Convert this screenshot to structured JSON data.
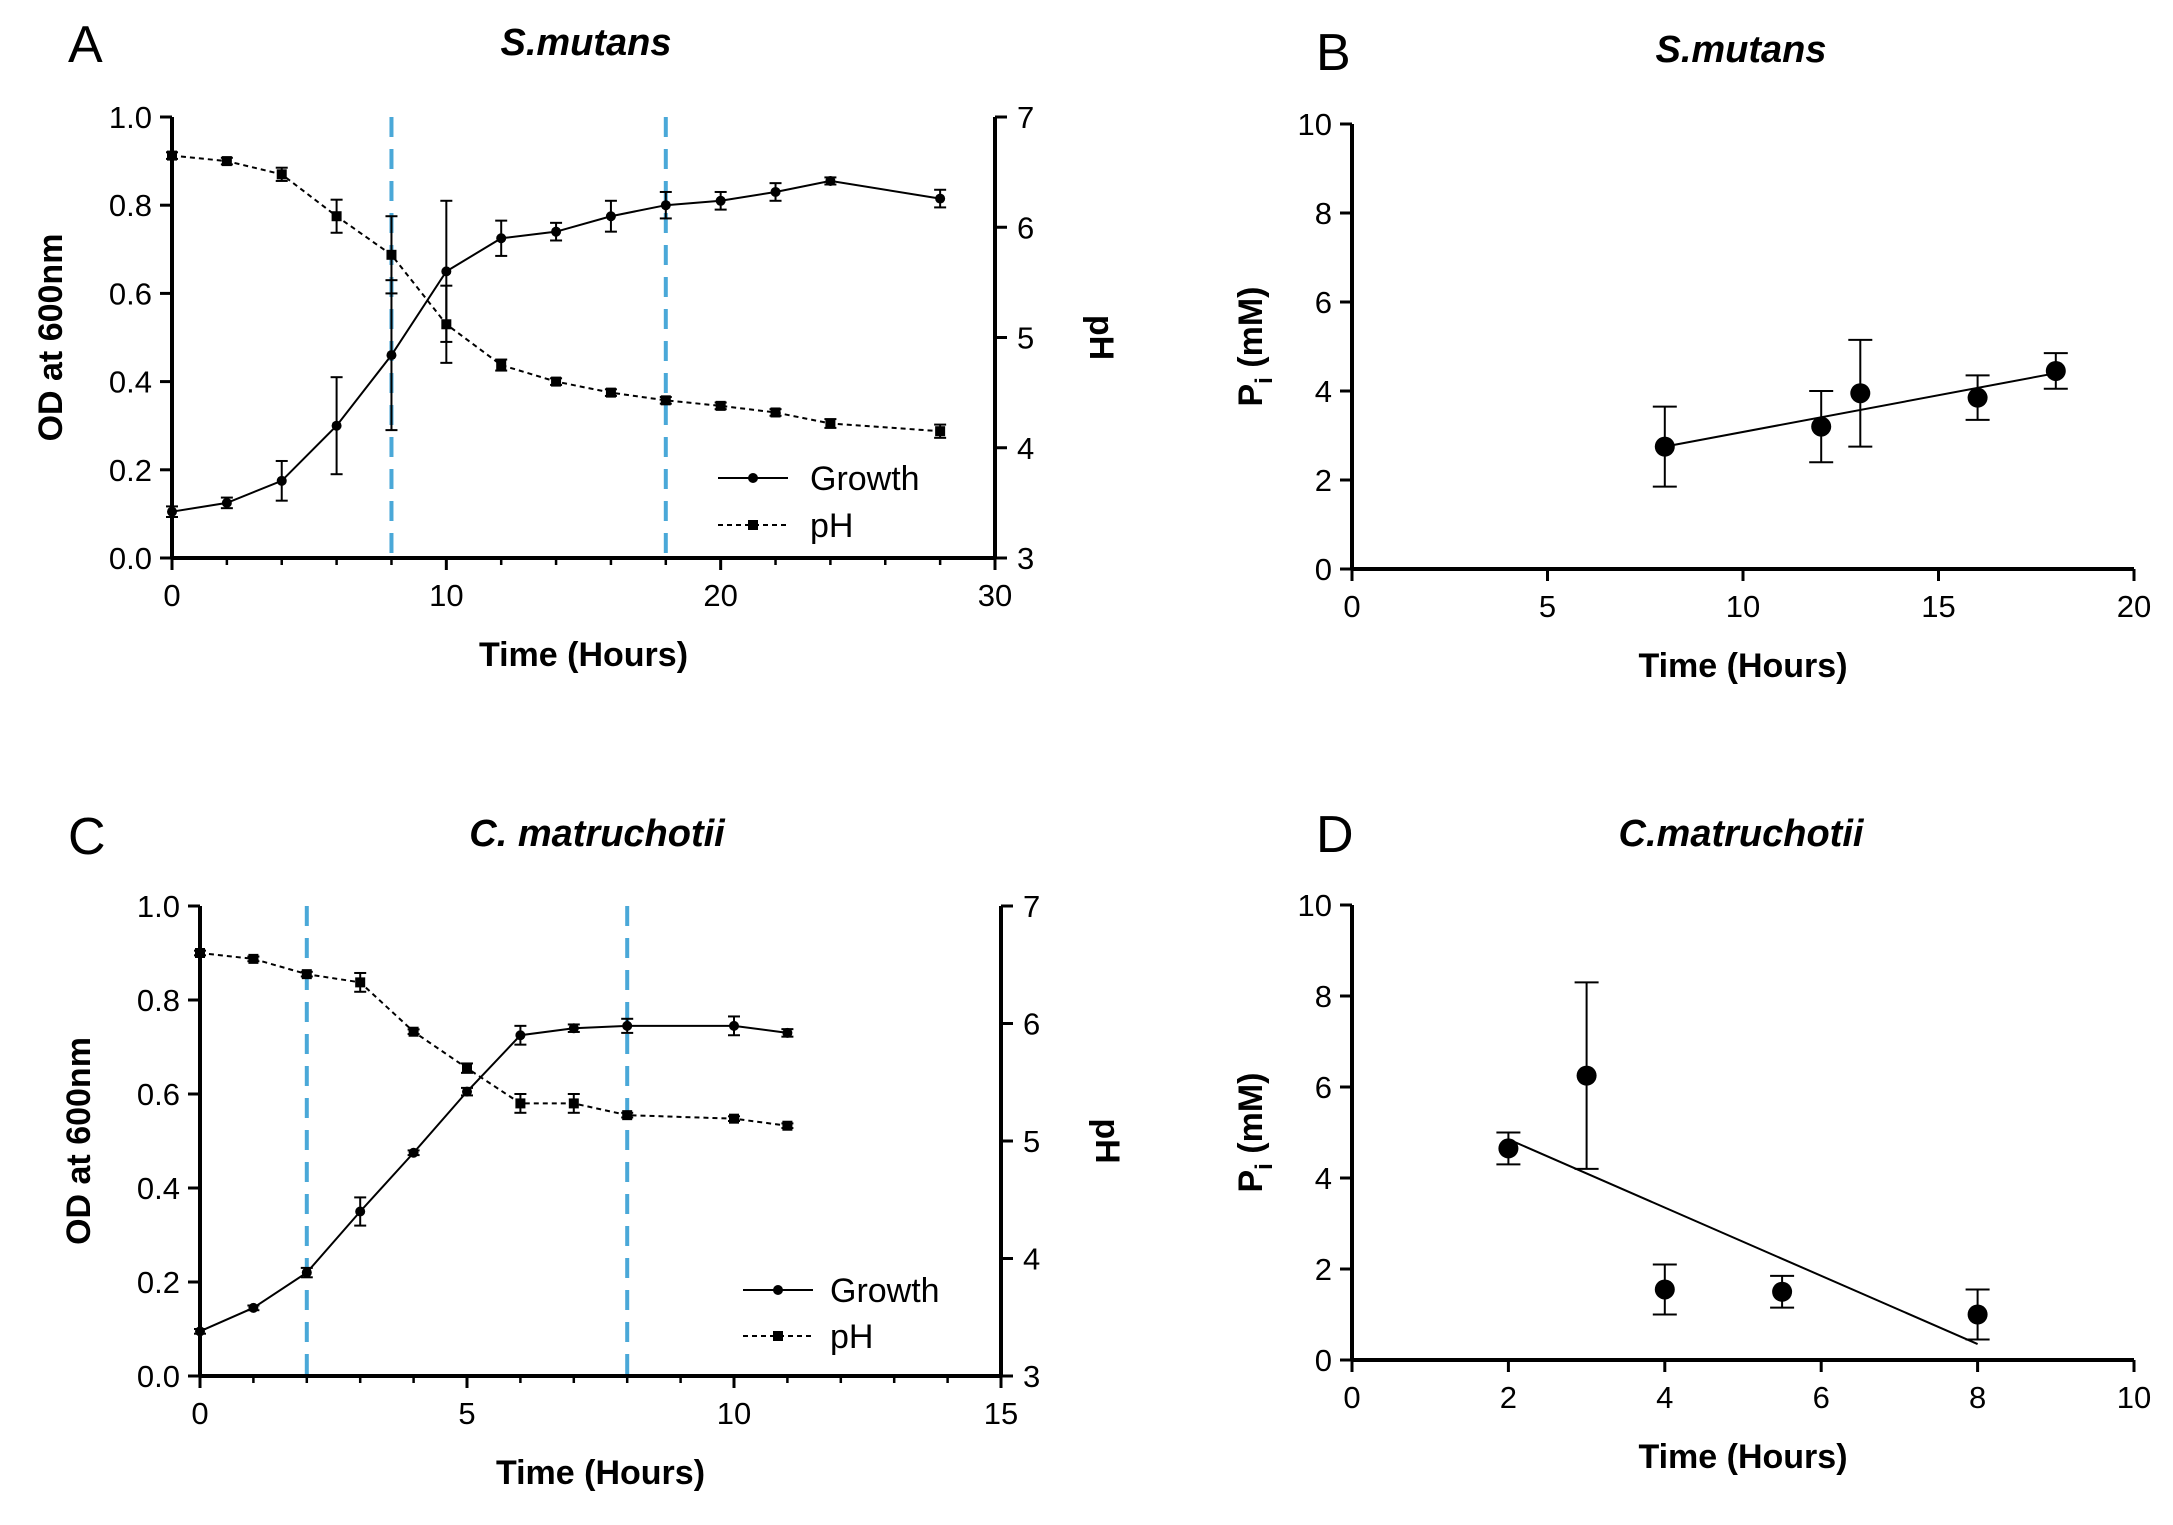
{
  "figure": {
    "panels": [
      {
        "letter": "A",
        "title": "S.mutans"
      },
      {
        "letter": "B",
        "title": "S.mutans"
      },
      {
        "letter": "C",
        "title": "C. matruchotii"
      },
      {
        "letter": "D",
        "title": "C.matruchotii"
      }
    ]
  },
  "colors": {
    "axis": "#000000",
    "marker_vline": "#4aa8d8",
    "line": "#000000"
  },
  "chart_data": [
    {
      "id": "A",
      "type": "line",
      "title": "S.mutans",
      "xlabel": "Time (Hours)",
      "ylabel": "OD at 600nm",
      "y2label": "pH",
      "xlim": [
        0,
        30
      ],
      "xticks": [
        0,
        10,
        20,
        30
      ],
      "ylim": [
        0,
        1.0
      ],
      "yticks": [
        0.0,
        0.2,
        0.4,
        0.6,
        0.8,
        1.0
      ],
      "y2lim": [
        3,
        7
      ],
      "y2ticks": [
        3,
        4,
        5,
        6,
        7
      ],
      "vlines": [
        8,
        18
      ],
      "legend_position": "bottom-right",
      "series": [
        {
          "name": "Growth",
          "axis": "left",
          "style": "solid",
          "marker": "circle",
          "x": [
            0,
            2,
            4,
            6,
            8,
            10,
            12,
            14,
            16,
            18,
            20,
            22,
            24,
            28
          ],
          "y": [
            0.105,
            0.125,
            0.175,
            0.3,
            0.46,
            0.65,
            0.725,
            0.74,
            0.775,
            0.8,
            0.81,
            0.83,
            0.855,
            0.815
          ],
          "err": [
            0.012,
            0.012,
            0.045,
            0.11,
            0.17,
            0.16,
            0.04,
            0.02,
            0.035,
            0.03,
            0.02,
            0.02,
            0.008,
            0.02
          ]
        },
        {
          "name": "pH",
          "axis": "right",
          "style": "dashed",
          "marker": "square",
          "x": [
            0,
            2,
            4,
            6,
            8,
            10,
            12,
            14,
            16,
            18,
            20,
            22,
            24,
            28
          ],
          "y": [
            6.65,
            6.6,
            6.48,
            6.1,
            5.75,
            5.12,
            4.75,
            4.6,
            4.5,
            4.43,
            4.38,
            4.32,
            4.22,
            4.15
          ],
          "err": [
            0.03,
            0.03,
            0.06,
            0.15,
            0.35,
            0.35,
            0.05,
            0.03,
            0.03,
            0.03,
            0.03,
            0.03,
            0.04,
            0.06
          ]
        }
      ]
    },
    {
      "id": "B",
      "type": "scatter",
      "title": "S.mutans",
      "xlabel": "Time (Hours)",
      "ylabel_main": "P",
      "ylabel_sub": "i",
      "ylabel_unit": " (mM)",
      "xlim": [
        0,
        20
      ],
      "xticks": [
        0,
        5,
        10,
        15,
        20
      ],
      "ylim": [
        0,
        10
      ],
      "yticks": [
        0,
        2,
        4,
        6,
        8,
        10
      ],
      "points": {
        "x": [
          8,
          12,
          13,
          16,
          18
        ],
        "y": [
          2.75,
          3.2,
          3.95,
          3.85,
          4.45
        ],
        "err": [
          0.9,
          0.8,
          1.2,
          0.5,
          0.4
        ]
      },
      "fit": {
        "x": [
          8,
          18
        ],
        "y": [
          2.75,
          4.4
        ]
      }
    },
    {
      "id": "C",
      "type": "line",
      "title": "C. matruchotii",
      "xlabel": "Time (Hours)",
      "ylabel": "OD at 600nm",
      "y2label": "pH",
      "xlim": [
        0,
        15
      ],
      "xticks": [
        0,
        5,
        10,
        15
      ],
      "ylim": [
        0,
        1.0
      ],
      "yticks": [
        0.0,
        0.2,
        0.4,
        0.6,
        0.8,
        1.0
      ],
      "y2lim": [
        3,
        7
      ],
      "y2ticks": [
        3,
        4,
        5,
        6,
        7
      ],
      "vlines": [
        2,
        8
      ],
      "legend_position": "bottom-right",
      "series": [
        {
          "name": "Growth",
          "axis": "left",
          "style": "solid",
          "marker": "circle",
          "x": [
            0,
            1,
            2,
            3,
            4,
            5,
            6,
            7,
            8,
            10,
            11
          ],
          "y": [
            0.095,
            0.145,
            0.22,
            0.35,
            0.475,
            0.605,
            0.725,
            0.74,
            0.745,
            0.745,
            0.73
          ],
          "err": [
            0.005,
            0.005,
            0.01,
            0.03,
            0.005,
            0.008,
            0.02,
            0.008,
            0.015,
            0.02,
            0.008
          ]
        },
        {
          "name": "pH",
          "axis": "right",
          "style": "dashed",
          "marker": "square",
          "x": [
            0,
            1,
            2,
            3,
            4,
            5,
            6,
            7,
            8,
            10,
            11
          ],
          "y": [
            6.6,
            6.55,
            6.42,
            6.35,
            5.93,
            5.62,
            5.32,
            5.32,
            5.22,
            5.19,
            5.13
          ],
          "err": [
            0.02,
            0.02,
            0.02,
            0.08,
            0.02,
            0.04,
            0.08,
            0.08,
            0.02,
            0.02,
            0.02
          ]
        }
      ]
    },
    {
      "id": "D",
      "type": "scatter",
      "title": "C.matruchotii",
      "xlabel": "Time (Hours)",
      "ylabel_main": "P",
      "ylabel_sub": "i",
      "ylabel_unit": " (mM)",
      "xlim": [
        0,
        10
      ],
      "xticks": [
        0,
        2,
        4,
        6,
        8,
        10
      ],
      "ylim": [
        0,
        10
      ],
      "yticks": [
        0,
        2,
        4,
        6,
        8,
        10
      ],
      "points": {
        "x": [
          2,
          3,
          4,
          5.5,
          8
        ],
        "y": [
          4.65,
          6.25,
          1.55,
          1.5,
          1.0
        ],
        "err": [
          0.35,
          2.05,
          0.55,
          0.35,
          0.55
        ]
      },
      "fit": {
        "x": [
          2,
          8
        ],
        "y": [
          4.85,
          0.35
        ]
      }
    }
  ]
}
